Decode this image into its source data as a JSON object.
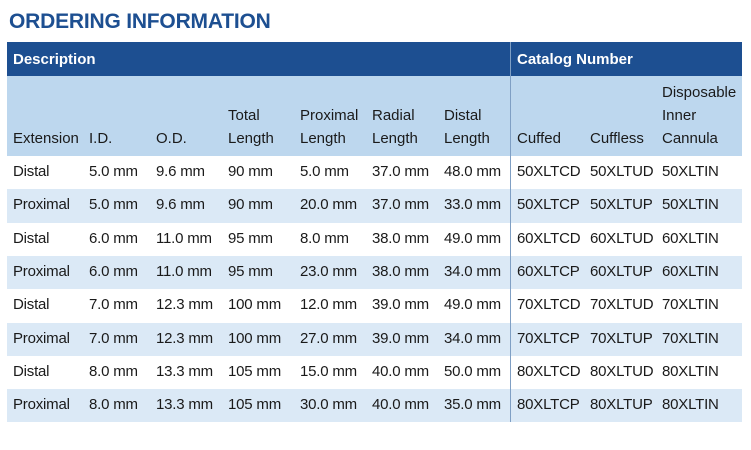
{
  "title": "ORDERING INFORMATION",
  "table": {
    "groups": [
      "Description",
      "Catalog Number"
    ],
    "columns": [
      [
        "Extension"
      ],
      [
        "I.D."
      ],
      [
        "O.D."
      ],
      [
        "Total",
        "Length"
      ],
      [
        "Proximal",
        "Length"
      ],
      [
        "Radial",
        "Length"
      ],
      [
        "Distal",
        "Length"
      ],
      [
        "Cuffed"
      ],
      [
        "Cuffless"
      ],
      [
        "Disposable",
        "Inner",
        "Cannula"
      ]
    ],
    "rows": [
      [
        "Distal",
        "5.0 mm",
        "9.6 mm",
        "90 mm",
        "5.0 mm",
        "37.0 mm",
        "48.0 mm",
        "50XLTCD",
        "50XLTUD",
        "50XLTIN"
      ],
      [
        "Proximal",
        "5.0 mm",
        "9.6 mm",
        "90 mm",
        "20.0 mm",
        "37.0 mm",
        "33.0 mm",
        "50XLTCP",
        "50XLTUP",
        "50XLTIN"
      ],
      [
        "Distal",
        "6.0 mm",
        "11.0 mm",
        "95 mm",
        "8.0 mm",
        "38.0 mm",
        "49.0 mm",
        "60XLTCD",
        "60XLTUD",
        "60XLTIN"
      ],
      [
        "Proximal",
        "6.0 mm",
        "11.0 mm",
        "95 mm",
        "23.0 mm",
        "38.0 mm",
        "34.0 mm",
        "60XLTCP",
        "60XLTUP",
        "60XLTIN"
      ],
      [
        "Distal",
        "7.0 mm",
        "12.3 mm",
        "100 mm",
        "12.0 mm",
        "39.0 mm",
        "49.0 mm",
        "70XLTCD",
        "70XLTUD",
        "70XLTIN"
      ],
      [
        "Proximal",
        "7.0 mm",
        "12.3 mm",
        "100 mm",
        "27.0 mm",
        "39.0 mm",
        "34.0 mm",
        "70XLTCP",
        "70XLTUP",
        "70XLTIN"
      ],
      [
        "Distal",
        "8.0 mm",
        "13.3 mm",
        "105 mm",
        "15.0 mm",
        "40.0 mm",
        "50.0 mm",
        "80XLTCD",
        "80XLTUD",
        "80XLTIN"
      ],
      [
        "Proximal",
        "8.0 mm",
        "13.3 mm",
        "105 mm",
        "30.0 mm",
        "40.0 mm",
        "35.0 mm",
        "80XLTCP",
        "80XLTUP",
        "80XLTIN"
      ]
    ]
  }
}
